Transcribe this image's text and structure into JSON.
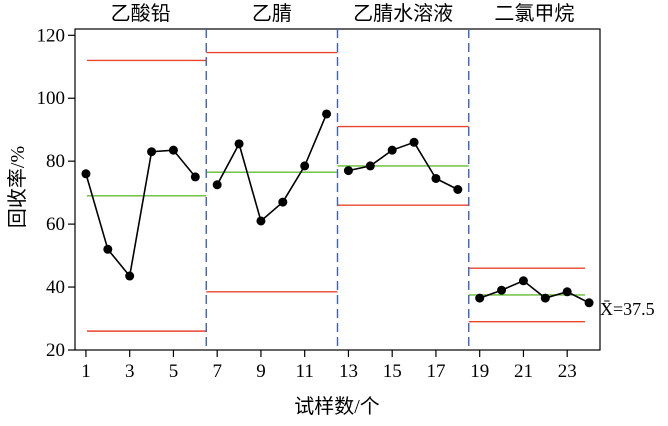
{
  "chart_data": {
    "type": "line",
    "subtype": "control-chart",
    "xlabel": "试样数/个",
    "ylabel": "回收率/%",
    "xlim": [
      0.5,
      24.5
    ],
    "ylim": [
      20,
      122
    ],
    "x_ticks": [
      1,
      3,
      5,
      7,
      9,
      11,
      13,
      15,
      17,
      19,
      21,
      23
    ],
    "y_ticks": [
      20,
      40,
      60,
      80,
      100,
      120
    ],
    "mean_label": "X̄=37.5",
    "colors": {
      "data": "#000000",
      "center_line": "#66bb33",
      "control_limits": "#e8442e",
      "group_divider": "#3a5fc8"
    },
    "groups": [
      {
        "label": "乙酸铅",
        "x_range": [
          1,
          6
        ],
        "center": 69,
        "ucl": 112,
        "lcl": 26,
        "values": [
          76,
          52,
          43.5,
          83,
          83.5,
          75
        ]
      },
      {
        "label": "乙腈",
        "x_range": [
          7,
          12
        ],
        "center": 76.5,
        "ucl": 114.5,
        "lcl": 38.5,
        "values": [
          72.5,
          85.5,
          61,
          67,
          78.5,
          95
        ]
      },
      {
        "label": "乙腈水溶液",
        "x_range": [
          13,
          18
        ],
        "center": 78.5,
        "ucl": 91,
        "lcl": 66,
        "values": [
          77,
          78.5,
          83.5,
          86,
          74.5,
          71
        ]
      },
      {
        "label": "二氯甲烷",
        "x_range": [
          19,
          24
        ],
        "center": 37.5,
        "ucl": 46,
        "lcl": 29,
        "values": [
          36.5,
          39,
          42,
          36.5,
          38.5,
          35
        ]
      }
    ],
    "dividers": [
      6.5,
      12.5,
      18.5
    ]
  }
}
